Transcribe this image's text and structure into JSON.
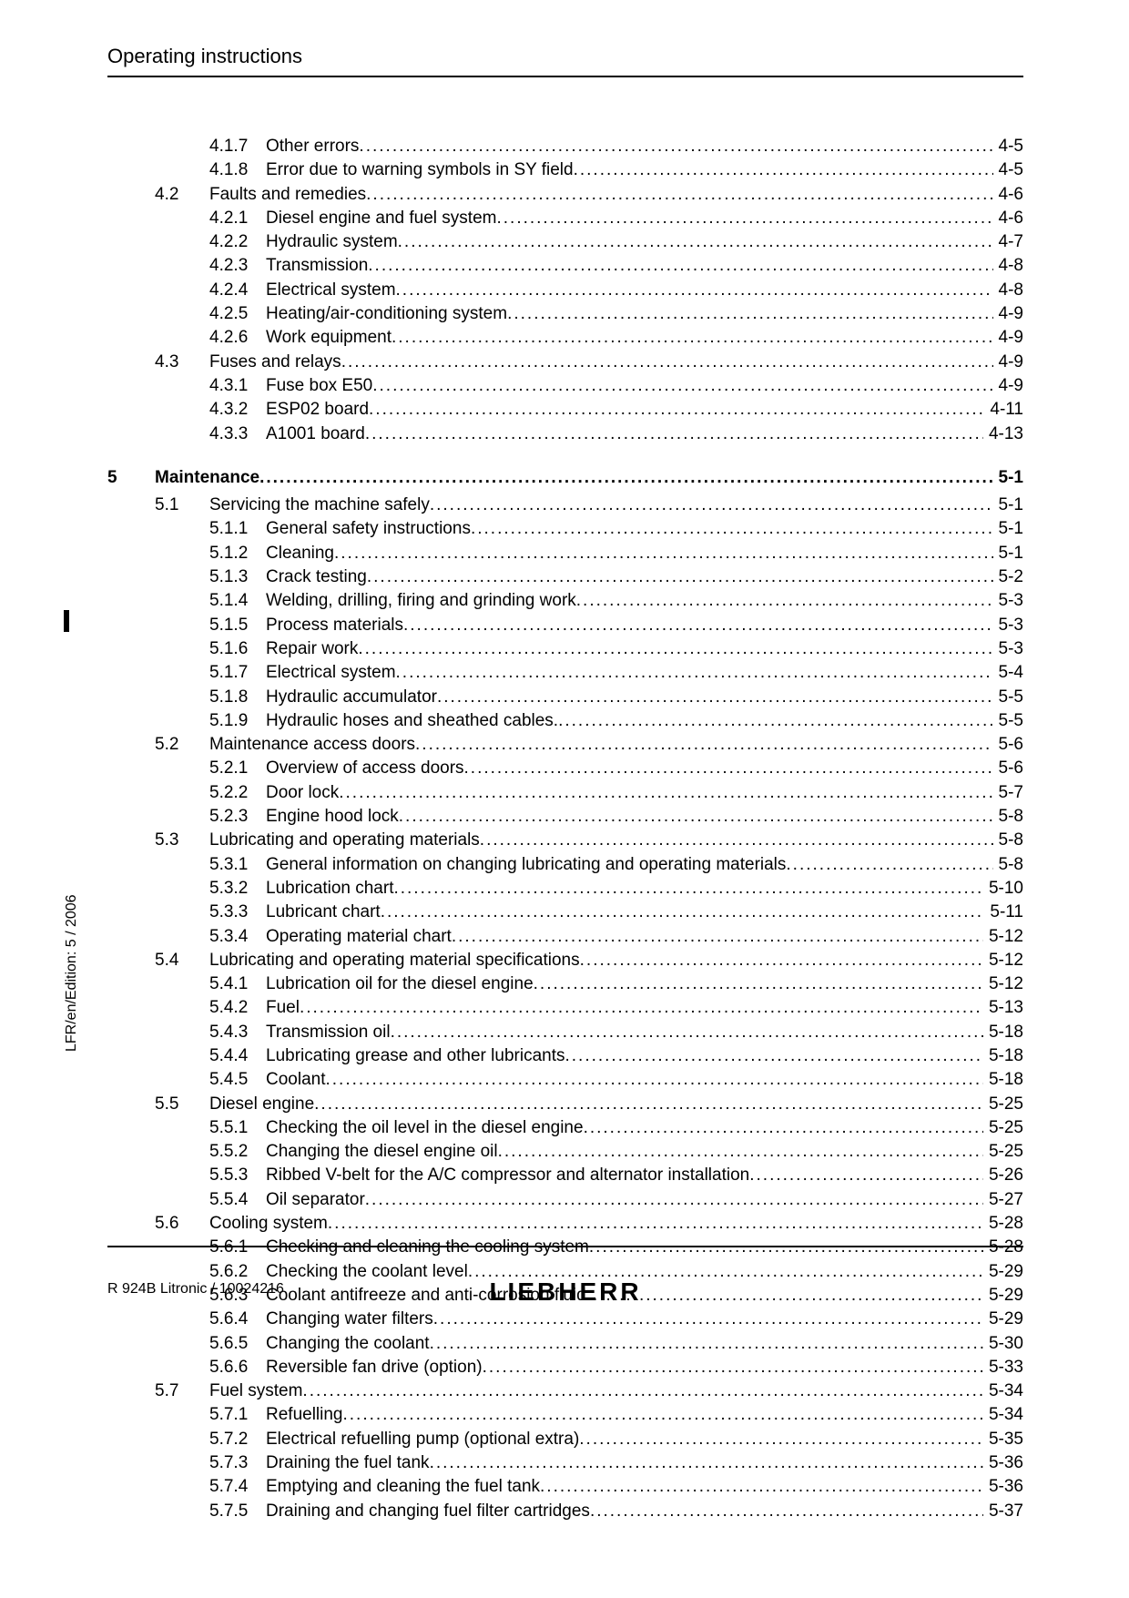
{
  "header": {
    "title": "Operating instructions"
  },
  "side": {
    "mark": "I",
    "edition": "LFR/en/Edition: 5 / 2006"
  },
  "footer": {
    "left": "R 924B Litronic / 10024216",
    "logo": "LIEBHERR"
  },
  "toc": [
    {
      "ch": "",
      "sec": "",
      "sub": "4.1.7",
      "title": "Other errors",
      "page": "4-5"
    },
    {
      "ch": "",
      "sec": "",
      "sub": "4.1.8",
      "title": "Error due to warning symbols in SY field",
      "page": "4-5"
    },
    {
      "ch": "",
      "sec": "4.2",
      "sub": "",
      "title": "Faults and remedies",
      "page": "4-6"
    },
    {
      "ch": "",
      "sec": "",
      "sub": "4.2.1",
      "title": "Diesel engine and fuel system",
      "page": "4-6"
    },
    {
      "ch": "",
      "sec": "",
      "sub": "4.2.2",
      "title": "Hydraulic system",
      "page": "4-7"
    },
    {
      "ch": "",
      "sec": "",
      "sub": "4.2.3",
      "title": "Transmission",
      "page": "4-8"
    },
    {
      "ch": "",
      "sec": "",
      "sub": "4.2.4",
      "title": "Electrical system",
      "page": "4-8"
    },
    {
      "ch": "",
      "sec": "",
      "sub": "4.2.5",
      "title": "Heating/air-conditioning system",
      "page": "4-9"
    },
    {
      "ch": "",
      "sec": "",
      "sub": "4.2.6",
      "title": "Work equipment",
      "page": "4-9"
    },
    {
      "ch": "",
      "sec": "4.3",
      "sub": "",
      "title": "Fuses and relays",
      "page": "4-9"
    },
    {
      "ch": "",
      "sec": "",
      "sub": "4.3.1",
      "title": "Fuse box E50",
      "page": "4-9"
    },
    {
      "ch": "",
      "sec": "",
      "sub": "4.3.2",
      "title": "ESP02 board",
      "page": "4-11"
    },
    {
      "ch": "",
      "sec": "",
      "sub": "4.3.3",
      "title": "A1001 board",
      "page": "4-13"
    },
    {
      "ch": "5",
      "sec": "",
      "sub": "",
      "title": "Maintenance",
      "page": "5-1",
      "bold": true
    },
    {
      "ch": "",
      "sec": "5.1",
      "sub": "",
      "title": "Servicing the machine safely",
      "page": "5-1"
    },
    {
      "ch": "",
      "sec": "",
      "sub": "5.1.1",
      "title": "General safety instructions",
      "page": "5-1"
    },
    {
      "ch": "",
      "sec": "",
      "sub": "5.1.2",
      "title": "Cleaning",
      "page": "5-1"
    },
    {
      "ch": "",
      "sec": "",
      "sub": "5.1.3",
      "title": "Crack testing",
      "page": "5-2"
    },
    {
      "ch": "",
      "sec": "",
      "sub": "5.1.4",
      "title": "Welding, drilling, firing and grinding work",
      "page": "5-3"
    },
    {
      "ch": "",
      "sec": "",
      "sub": "5.1.5",
      "title": "Process materials",
      "page": "5-3"
    },
    {
      "ch": "",
      "sec": "",
      "sub": "5.1.6",
      "title": "Repair work",
      "page": "5-3"
    },
    {
      "ch": "",
      "sec": "",
      "sub": "5.1.7",
      "title": "Electrical system",
      "page": "5-4"
    },
    {
      "ch": "",
      "sec": "",
      "sub": "5.1.8",
      "title": "Hydraulic accumulator",
      "page": "5-5"
    },
    {
      "ch": "",
      "sec": "",
      "sub": "5.1.9",
      "title": "Hydraulic hoses and sheathed cables.",
      "page": "5-5"
    },
    {
      "ch": "",
      "sec": "5.2",
      "sub": "",
      "title": "Maintenance access doors",
      "page": "5-6"
    },
    {
      "ch": "",
      "sec": "",
      "sub": "5.2.1",
      "title": "Overview of access doors",
      "page": "5-6"
    },
    {
      "ch": "",
      "sec": "",
      "sub": "5.2.2",
      "title": "Door lock",
      "page": "5-7"
    },
    {
      "ch": "",
      "sec": "",
      "sub": "5.2.3",
      "title": "Engine hood lock",
      "page": "5-8"
    },
    {
      "ch": "",
      "sec": "5.3",
      "sub": "",
      "title": "Lubricating and operating materials",
      "page": "5-8"
    },
    {
      "ch": "",
      "sec": "",
      "sub": "5.3.1",
      "title": "General information on changing lubricating and operating materials",
      "page": "5-8"
    },
    {
      "ch": "",
      "sec": "",
      "sub": "5.3.2",
      "title": "Lubrication chart",
      "page": "5-10"
    },
    {
      "ch": "",
      "sec": "",
      "sub": "5.3.3",
      "title": "Lubricant chart",
      "page": "5-11"
    },
    {
      "ch": "",
      "sec": "",
      "sub": "5.3.4",
      "title": "Operating material chart",
      "page": "5-12"
    },
    {
      "ch": "",
      "sec": "5.4",
      "sub": "",
      "title": "Lubricating and operating material specifications",
      "page": "5-12"
    },
    {
      "ch": "",
      "sec": "",
      "sub": "5.4.1",
      "title": "Lubrication oil for the diesel engine",
      "page": "5-12"
    },
    {
      "ch": "",
      "sec": "",
      "sub": "5.4.2",
      "title": "Fuel",
      "page": "5-13"
    },
    {
      "ch": "",
      "sec": "",
      "sub": "5.4.3",
      "title": "Transmission oil",
      "page": "5-18"
    },
    {
      "ch": "",
      "sec": "",
      "sub": "5.4.4",
      "title": "Lubricating grease and other lubricants",
      "page": "5-18"
    },
    {
      "ch": "",
      "sec": "",
      "sub": "5.4.5",
      "title": "Coolant",
      "page": "5-18"
    },
    {
      "ch": "",
      "sec": "5.5",
      "sub": "",
      "title": "Diesel engine",
      "page": "5-25"
    },
    {
      "ch": "",
      "sec": "",
      "sub": "5.5.1",
      "title": "Checking the oil level in the diesel engine",
      "page": "5-25"
    },
    {
      "ch": "",
      "sec": "",
      "sub": "5.5.2",
      "title": "Changing the diesel engine oil",
      "page": "5-25"
    },
    {
      "ch": "",
      "sec": "",
      "sub": "5.5.3",
      "title": "Ribbed V-belt for the A/C compressor and alternator installation",
      "page": "5-26"
    },
    {
      "ch": "",
      "sec": "",
      "sub": "5.5.4",
      "title": "Oil separator",
      "page": "5-27"
    },
    {
      "ch": "",
      "sec": "5.6",
      "sub": "",
      "title": "Cooling system",
      "page": "5-28"
    },
    {
      "ch": "",
      "sec": "",
      "sub": "5.6.1",
      "title": "Checking and cleaning the cooling system",
      "page": "5-28"
    },
    {
      "ch": "",
      "sec": "",
      "sub": "5.6.2",
      "title": "Checking the coolant level",
      "page": "5-29"
    },
    {
      "ch": "",
      "sec": "",
      "sub": "5.6.3",
      "title": "Coolant antifreeze and anti-corrosion fluid",
      "page": "5-29"
    },
    {
      "ch": "",
      "sec": "",
      "sub": "5.6.4",
      "title": "Changing water filters",
      "page": "5-29"
    },
    {
      "ch": "",
      "sec": "",
      "sub": "5.6.5",
      "title": "Changing the coolant",
      "page": "5-30"
    },
    {
      "ch": "",
      "sec": "",
      "sub": "5.6.6",
      "title": "Reversible fan drive (option)",
      "page": "5-33"
    },
    {
      "ch": "",
      "sec": "5.7",
      "sub": "",
      "title": "Fuel system",
      "page": "5-34"
    },
    {
      "ch": "",
      "sec": "",
      "sub": "5.7.1",
      "title": "Refuelling",
      "page": "5-34"
    },
    {
      "ch": "",
      "sec": "",
      "sub": "5.7.2",
      "title": "Electrical refuelling pump (optional extra)",
      "page": "5-35"
    },
    {
      "ch": "",
      "sec": "",
      "sub": "5.7.3",
      "title": "Draining the fuel tank",
      "page": "5-36"
    },
    {
      "ch": "",
      "sec": "",
      "sub": "5.7.4",
      "title": "Emptying and cleaning the fuel tank",
      "page": "5-36"
    },
    {
      "ch": "",
      "sec": "",
      "sub": "5.7.5",
      "title": "Draining and changing fuel filter cartridges",
      "page": "5-37"
    }
  ]
}
